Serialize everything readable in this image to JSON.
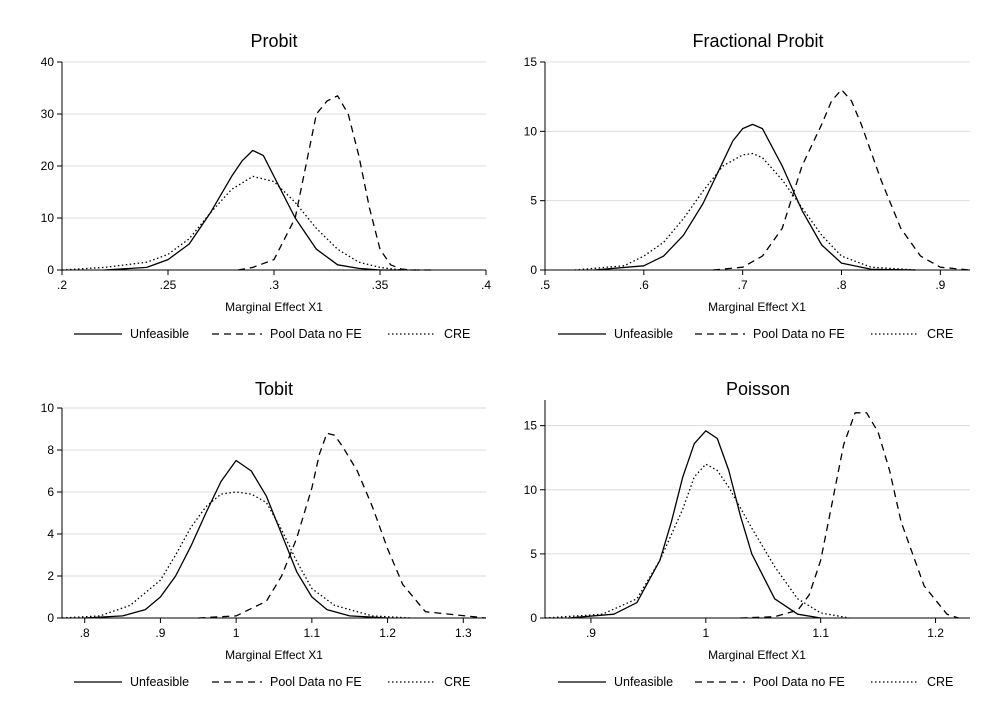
{
  "chart_data": [
    {
      "type": "line",
      "title": "Probit",
      "xlabel": "Marginal Effect X1",
      "ylabel": "",
      "xlim": [
        0.2,
        0.4
      ],
      "ylim": [
        0,
        40
      ],
      "x_ticks": [
        0.2,
        0.25,
        0.3,
        0.35,
        0.4
      ],
      "x_tick_labels": [
        ".2",
        ".25",
        ".3",
        ".35",
        ".4"
      ],
      "y_ticks": [
        0,
        10,
        20,
        30,
        40
      ],
      "y_tick_labels": [
        "0",
        "10",
        "20",
        "30",
        "40"
      ],
      "grid": true,
      "legend_position": "bottom",
      "series": [
        {
          "name": "Unfeasible",
          "style": "solid",
          "x": [
            0.22,
            0.24,
            0.25,
            0.26,
            0.27,
            0.28,
            0.285,
            0.29,
            0.295,
            0.3,
            0.31,
            0.32,
            0.33,
            0.34,
            0.35,
            0.36
          ],
          "y": [
            0,
            0.5,
            2,
            5,
            11,
            18,
            21,
            23,
            22,
            18,
            10,
            4,
            1,
            0.3,
            0,
            0
          ]
        },
        {
          "name": "Pool Data no FE",
          "style": "dashed",
          "x": [
            0.283,
            0.29,
            0.3,
            0.31,
            0.315,
            0.32,
            0.325,
            0.33,
            0.335,
            0.34,
            0.345,
            0.35,
            0.355,
            0.36,
            0.365,
            0.375
          ],
          "y": [
            0,
            0.5,
            2,
            10,
            20,
            30,
            32.5,
            33.5,
            30,
            22,
            12,
            4,
            1,
            0.2,
            0,
            0
          ]
        },
        {
          "name": "CRE",
          "style": "dotted",
          "x": [
            0.2,
            0.22,
            0.24,
            0.25,
            0.26,
            0.27,
            0.28,
            0.29,
            0.3,
            0.31,
            0.32,
            0.33,
            0.34,
            0.35,
            0.36,
            0.37
          ],
          "y": [
            0,
            0.5,
            1.5,
            3,
            6,
            11,
            15.5,
            18,
            17,
            13,
            8,
            4,
            1.5,
            0.5,
            0,
            0
          ]
        }
      ]
    },
    {
      "type": "line",
      "title": "Fractional Probit",
      "xlabel": "Marginal Effect X1",
      "ylabel": "",
      "xlim": [
        0.5,
        0.93
      ],
      "ylim": [
        0,
        15
      ],
      "x_ticks": [
        0.5,
        0.6,
        0.7,
        0.8,
        0.9
      ],
      "x_tick_labels": [
        ".5",
        ".6",
        ".7",
        ".8",
        ".9"
      ],
      "y_ticks": [
        0,
        5,
        10,
        15
      ],
      "y_tick_labels": [
        "0",
        "5",
        "10",
        "15"
      ],
      "grid": true,
      "legend_position": "bottom",
      "series": [
        {
          "name": "Unfeasible",
          "style": "solid",
          "x": [
            0.55,
            0.6,
            0.62,
            0.64,
            0.66,
            0.68,
            0.69,
            0.7,
            0.71,
            0.72,
            0.74,
            0.76,
            0.78,
            0.8,
            0.83,
            0.875
          ],
          "y": [
            0,
            0.3,
            1,
            2.5,
            4.8,
            7.8,
            9.3,
            10.2,
            10.5,
            10.2,
            7.5,
            4.3,
            1.8,
            0.5,
            0.05,
            0
          ]
        },
        {
          "name": "Pool Data no FE",
          "style": "dashed",
          "x": [
            0.67,
            0.7,
            0.72,
            0.74,
            0.76,
            0.78,
            0.79,
            0.8,
            0.81,
            0.82,
            0.84,
            0.86,
            0.88,
            0.9,
            0.93
          ],
          "y": [
            0,
            0.2,
            1,
            3,
            7.5,
            10.5,
            12.2,
            13,
            12.2,
            10.5,
            6.5,
            3,
            1,
            0.2,
            0
          ]
        },
        {
          "name": "CRE",
          "style": "dotted",
          "x": [
            0.53,
            0.58,
            0.6,
            0.62,
            0.64,
            0.66,
            0.68,
            0.7,
            0.71,
            0.72,
            0.74,
            0.76,
            0.78,
            0.8,
            0.83,
            0.875
          ],
          "y": [
            0,
            0.3,
            1,
            2,
            3.7,
            5.7,
            7.5,
            8.3,
            8.4,
            8.1,
            6.5,
            4.5,
            2.5,
            1,
            0.2,
            0
          ]
        }
      ]
    },
    {
      "type": "line",
      "title": "Tobit",
      "xlabel": "Marginal Effect X1",
      "ylabel": "",
      "xlim": [
        0.77,
        1.33
      ],
      "ylim": [
        0,
        10
      ],
      "x_ticks": [
        0.8,
        0.9,
        1.0,
        1.1,
        1.2,
        1.3
      ],
      "x_tick_labels": [
        ".8",
        ".9",
        "1",
        "1.1",
        "1.2",
        "1.3"
      ],
      "y_ticks": [
        0,
        2,
        4,
        6,
        8,
        10
      ],
      "y_tick_labels": [
        "0",
        "2",
        "4",
        "6",
        "8",
        "10"
      ],
      "grid": true,
      "legend_position": "bottom",
      "series": [
        {
          "name": "Unfeasible",
          "style": "solid",
          "x": [
            0.8,
            0.85,
            0.88,
            0.9,
            0.92,
            0.94,
            0.96,
            0.98,
            1.0,
            1.02,
            1.04,
            1.06,
            1.08,
            1.1,
            1.12,
            1.15,
            1.2
          ],
          "y": [
            0,
            0.1,
            0.4,
            1,
            2,
            3.4,
            5,
            6.5,
            7.5,
            7,
            5.8,
            4,
            2.2,
            1,
            0.4,
            0.1,
            0
          ]
        },
        {
          "name": "Pool Data no FE",
          "style": "dashed",
          "x": [
            0.95,
            1.0,
            1.04,
            1.06,
            1.08,
            1.1,
            1.11,
            1.12,
            1.13,
            1.14,
            1.16,
            1.18,
            1.2,
            1.22,
            1.25,
            1.33
          ],
          "y": [
            0,
            0.1,
            0.8,
            2,
            3.8,
            6.2,
            7.8,
            8.8,
            8.7,
            8.2,
            7,
            5.3,
            3.3,
            1.6,
            0.3,
            0
          ]
        },
        {
          "name": "CRE",
          "style": "dotted",
          "x": [
            0.77,
            0.82,
            0.86,
            0.9,
            0.92,
            0.94,
            0.96,
            0.98,
            1.0,
            1.02,
            1.04,
            1.06,
            1.08,
            1.1,
            1.13,
            1.18,
            1.23
          ],
          "y": [
            0,
            0.1,
            0.6,
            1.8,
            3,
            4.3,
            5.3,
            5.9,
            6,
            5.9,
            5.5,
            4.2,
            2.7,
            1.4,
            0.6,
            0.1,
            0
          ]
        }
      ]
    },
    {
      "type": "line",
      "title": "Poisson",
      "xlabel": "Marginal Effect X1",
      "ylabel": "",
      "xlim": [
        0.86,
        1.23
      ],
      "ylim": [
        0,
        17
      ],
      "x_ticks": [
        0.9,
        1.0,
        1.1,
        1.2
      ],
      "x_tick_labels": [
        ".9",
        "1",
        "1.1",
        "1.2"
      ],
      "y_ticks": [
        0,
        5,
        10,
        15
      ],
      "y_tick_labels": [
        "0",
        "5",
        "10",
        "15"
      ],
      "grid": true,
      "legend_position": "bottom",
      "series": [
        {
          "name": "Unfeasible",
          "style": "solid",
          "x": [
            0.88,
            0.92,
            0.94,
            0.96,
            0.97,
            0.98,
            0.99,
            1.0,
            1.01,
            1.02,
            1.03,
            1.04,
            1.06,
            1.08,
            1.1
          ],
          "y": [
            0,
            0.3,
            1.2,
            4.5,
            7.5,
            11,
            13.6,
            14.6,
            14,
            11.5,
            8,
            5,
            1.5,
            0.3,
            0
          ]
        },
        {
          "name": "Pool Data no FE",
          "style": "dashed",
          "x": [
            1.03,
            1.06,
            1.08,
            1.09,
            1.1,
            1.11,
            1.12,
            1.13,
            1.14,
            1.15,
            1.16,
            1.17,
            1.19,
            1.21,
            1.22
          ],
          "y": [
            0,
            0.1,
            0.6,
            1.8,
            4.5,
            9,
            13.5,
            16,
            16,
            14.5,
            11.5,
            7.5,
            2.5,
            0.3,
            0
          ]
        },
        {
          "name": "CRE",
          "style": "dotted",
          "x": [
            0.86,
            0.91,
            0.94,
            0.96,
            0.98,
            0.99,
            1.0,
            1.01,
            1.02,
            1.04,
            1.06,
            1.08,
            1.1,
            1.125
          ],
          "y": [
            0,
            0.3,
            1.5,
            4.5,
            8.5,
            11,
            12,
            11.5,
            10.2,
            7,
            4,
            1.5,
            0.4,
            0
          ]
        }
      ]
    }
  ]
}
